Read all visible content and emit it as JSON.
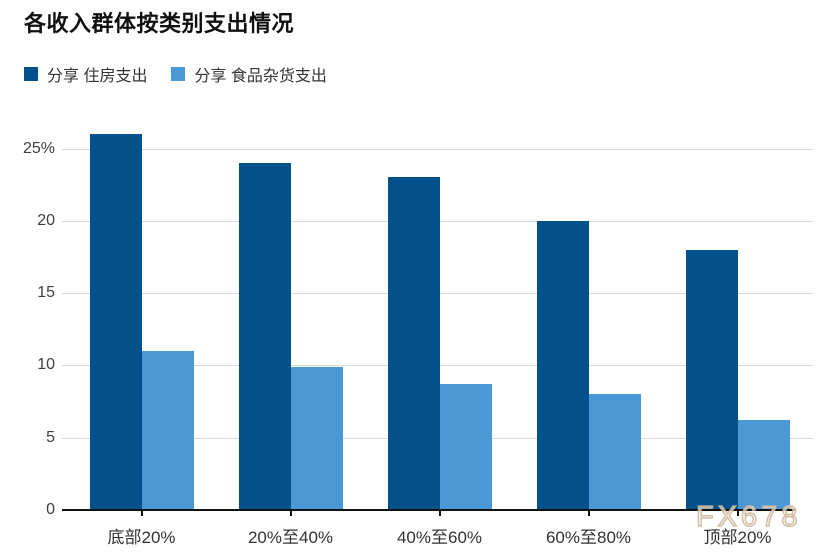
{
  "chart_data": {
    "type": "bar",
    "title": "各收入群体按类别支出情况",
    "categories": [
      "底部20%",
      "20%至40%",
      "40%至60%",
      "60%至80%",
      "顶部20%"
    ],
    "series": [
      {
        "name": "分享 住房支出",
        "color": "#03518a",
        "values": [
          26,
          24,
          23,
          20,
          18
        ]
      },
      {
        "name": "分享 食品杂货支出",
        "color": "#4a99d6",
        "values": [
          11,
          9.9,
          8.7,
          8,
          6.2
        ]
      }
    ],
    "xlabel": "",
    "ylabel": "",
    "ylim": [
      0,
      26
    ],
    "yticks": [
      0,
      5,
      10,
      15,
      20,
      25
    ],
    "ytick_labels": [
      "0",
      "5",
      "10",
      "15",
      "20",
      "25%"
    ],
    "grid": true,
    "legend_position": "top-left"
  },
  "watermark": {
    "text": "FX678"
  },
  "colors": {
    "grid": "#d9d9d9",
    "axis": "#111111",
    "tick_text": "#404040",
    "label_text": "#333333",
    "title_text": "#111111"
  }
}
